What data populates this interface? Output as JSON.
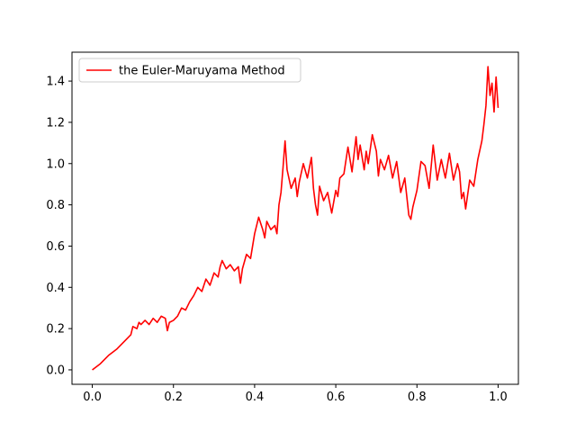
{
  "chart_data": {
    "type": "line",
    "title": "",
    "xlabel": "",
    "ylabel": "",
    "xlim": [
      -0.05,
      1.05
    ],
    "ylim": [
      -0.07,
      1.54
    ],
    "xticks": [
      0.0,
      0.2,
      0.4,
      0.6,
      0.8,
      1.0
    ],
    "xtick_labels": [
      "0.0",
      "0.2",
      "0.4",
      "0.6",
      "0.8",
      "1.0"
    ],
    "yticks": [
      0.0,
      0.2,
      0.4,
      0.6,
      0.8,
      1.0,
      1.2,
      1.4
    ],
    "ytick_labels": [
      "0.0",
      "0.2",
      "0.4",
      "0.6",
      "0.8",
      "1.0",
      "1.2",
      "1.4"
    ],
    "grid": false,
    "legend": {
      "placement": "top-left",
      "entries": [
        "the Euler-Maruyama Method"
      ]
    },
    "series": [
      {
        "name": "the Euler-Maruyama Method",
        "color": "#ff0000",
        "x": [
          0.0,
          0.02,
          0.04,
          0.06,
          0.07,
          0.085,
          0.095,
          0.1,
          0.11,
          0.115,
          0.12,
          0.13,
          0.14,
          0.15,
          0.16,
          0.17,
          0.18,
          0.185,
          0.19,
          0.2,
          0.21,
          0.22,
          0.23,
          0.24,
          0.25,
          0.26,
          0.27,
          0.28,
          0.29,
          0.3,
          0.31,
          0.315,
          0.32,
          0.33,
          0.34,
          0.35,
          0.36,
          0.365,
          0.37,
          0.38,
          0.39,
          0.4,
          0.41,
          0.42,
          0.425,
          0.43,
          0.44,
          0.45,
          0.455,
          0.46,
          0.465,
          0.47,
          0.475,
          0.48,
          0.49,
          0.5,
          0.505,
          0.51,
          0.52,
          0.53,
          0.54,
          0.545,
          0.55,
          0.555,
          0.56,
          0.57,
          0.58,
          0.59,
          0.6,
          0.605,
          0.61,
          0.62,
          0.63,
          0.64,
          0.65,
          0.655,
          0.66,
          0.67,
          0.675,
          0.68,
          0.69,
          0.7,
          0.705,
          0.71,
          0.72,
          0.73,
          0.74,
          0.75,
          0.76,
          0.77,
          0.78,
          0.785,
          0.79,
          0.8,
          0.81,
          0.82,
          0.83,
          0.84,
          0.85,
          0.86,
          0.87,
          0.88,
          0.89,
          0.9,
          0.905,
          0.91,
          0.915,
          0.92,
          0.93,
          0.94,
          0.95,
          0.96,
          0.965,
          0.97,
          0.975,
          0.98,
          0.985,
          0.99,
          0.995,
          1.0
        ],
        "y": [
          0.0,
          0.03,
          0.07,
          0.1,
          0.12,
          0.15,
          0.17,
          0.21,
          0.2,
          0.23,
          0.22,
          0.24,
          0.22,
          0.25,
          0.23,
          0.26,
          0.25,
          0.19,
          0.23,
          0.24,
          0.26,
          0.3,
          0.29,
          0.33,
          0.36,
          0.4,
          0.38,
          0.44,
          0.41,
          0.47,
          0.45,
          0.5,
          0.53,
          0.49,
          0.51,
          0.48,
          0.5,
          0.42,
          0.49,
          0.56,
          0.54,
          0.66,
          0.74,
          0.68,
          0.64,
          0.72,
          0.68,
          0.7,
          0.66,
          0.8,
          0.86,
          0.98,
          1.11,
          0.97,
          0.88,
          0.93,
          0.84,
          0.91,
          1.0,
          0.93,
          1.03,
          0.88,
          0.8,
          0.75,
          0.89,
          0.82,
          0.86,
          0.76,
          0.87,
          0.84,
          0.93,
          0.95,
          1.08,
          0.96,
          1.13,
          1.02,
          1.09,
          0.97,
          1.06,
          1.0,
          1.14,
          1.06,
          0.94,
          1.02,
          0.97,
          1.04,
          0.93,
          1.01,
          0.86,
          0.93,
          0.75,
          0.73,
          0.79,
          0.87,
          1.01,
          0.99,
          0.88,
          1.09,
          0.92,
          1.02,
          0.93,
          1.05,
          0.92,
          1.0,
          0.96,
          0.83,
          0.86,
          0.78,
          0.92,
          0.89,
          1.02,
          1.11,
          1.19,
          1.28,
          1.47,
          1.33,
          1.39,
          1.25,
          1.42,
          1.27
        ]
      }
    ]
  }
}
